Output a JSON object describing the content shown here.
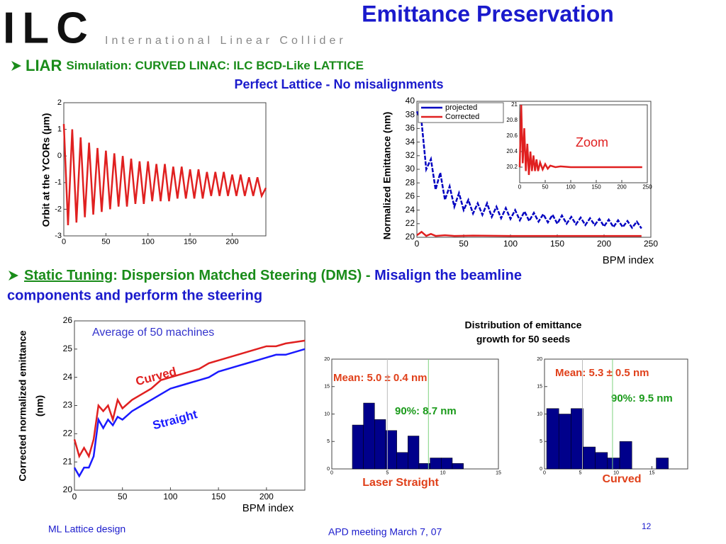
{
  "logo": {
    "mark": "ILC",
    "name": "International Linear Collider"
  },
  "title": "Emittance Preservation",
  "bullet1": {
    "lead": "LIAR",
    "text": "Simulation: CURVED LINAC: ILC  BCD-Like LATTICE",
    "subtitle": "Perfect Lattice - No misalignments"
  },
  "bullet2": {
    "lead": "Static Tuning",
    "text": ": Dispersion Matched Steering (DMS) - ",
    "highlight": [
      "Misalign the beamline",
      "components and perform the steering"
    ]
  },
  "histograms_heading": [
    "Distribution of emittance",
    "growth for 50 seeds"
  ],
  "footer": {
    "left": "ML Lattice design",
    "center": "APD meeting March 7, 07",
    "page": "12"
  },
  "chart_data": [
    {
      "type": "line",
      "ylabel": "Orbit at the YCORs (μm)",
      "x": [
        0,
        5,
        10,
        15,
        20,
        25,
        30,
        35,
        40,
        45,
        50,
        55,
        60,
        65,
        70,
        75,
        80,
        85,
        90,
        95,
        100,
        105,
        110,
        115,
        120,
        125,
        130,
        135,
        140,
        145,
        150,
        155,
        160,
        165,
        170,
        175,
        180,
        185,
        190,
        195,
        200,
        205,
        210,
        215,
        220,
        225,
        230,
        235,
        240
      ],
      "series": [
        {
          "color": "#e02020",
          "values": [
            1.2,
            -2.6,
            1.0,
            -2.5,
            0.7,
            -2.3,
            0.5,
            -2.2,
            0.3,
            -2.1,
            0.2,
            -2.0,
            0.1,
            -1.9,
            0.0,
            -1.9,
            -0.1,
            -1.8,
            -0.2,
            -1.8,
            -0.2,
            -1.7,
            -0.3,
            -1.7,
            -0.3,
            -1.7,
            -0.4,
            -1.6,
            -0.4,
            -1.6,
            -0.5,
            -1.6,
            -0.5,
            -1.6,
            -0.6,
            -1.5,
            -0.6,
            -1.5,
            -0.6,
            -1.5,
            -0.7,
            -1.5,
            -0.7,
            -1.5,
            -0.8,
            -1.5,
            -0.8,
            -1.5,
            -1.2
          ]
        }
      ],
      "xlim": [
        0,
        240
      ],
      "xticks": [
        0,
        50,
        100,
        150,
        200
      ],
      "ylim": [
        -3,
        2
      ],
      "yticks": [
        -3,
        -2,
        -1,
        0,
        1,
        2
      ]
    },
    {
      "type": "line",
      "ylabel": "Normalized Emittance (nm)",
      "xlabel": "BPM index",
      "series": [
        {
          "name": "projected",
          "color": "#0000c0",
          "dash": true,
          "x": [
            0,
            5,
            10,
            15,
            20,
            25,
            30,
            35,
            40,
            45,
            50,
            55,
            60,
            65,
            70,
            75,
            80,
            85,
            90,
            95,
            100,
            105,
            110,
            115,
            120,
            125,
            130,
            135,
            140,
            145,
            150,
            155,
            160,
            165,
            170,
            175,
            180,
            185,
            190,
            195,
            200,
            205,
            210,
            215,
            220,
            225,
            230,
            235,
            240
          ],
          "values": [
            38.5,
            37,
            30,
            31.5,
            27,
            29.5,
            25.5,
            27.5,
            24.5,
            26.5,
            24,
            25.5,
            23.5,
            25,
            23.3,
            25,
            23,
            24.5,
            22.8,
            24.3,
            22.7,
            24,
            22.5,
            23.8,
            22.4,
            23.6,
            22.3,
            23.4,
            22.2,
            23.3,
            22,
            23.2,
            22,
            23,
            21.9,
            22.9,
            21.8,
            22.8,
            21.8,
            22.7,
            21.6,
            22.6,
            21.5,
            22.5,
            21.5,
            22.4,
            21.4,
            22.3,
            21.3
          ]
        },
        {
          "name": "Corrected",
          "color": "#e02020",
          "x": [
            0,
            5,
            10,
            15,
            20,
            30,
            40,
            60,
            100,
            150,
            200,
            240
          ],
          "values": [
            20.3,
            20.8,
            20.2,
            20.5,
            20.2,
            20.3,
            20.2,
            20.25,
            20.2,
            20.2,
            20.2,
            20.2
          ]
        }
      ],
      "xlim": [
        0,
        250
      ],
      "xticks": [
        0,
        50,
        100,
        150,
        200,
        250
      ],
      "ylim": [
        20,
        40
      ],
      "yticks": [
        20,
        22,
        24,
        26,
        28,
        30,
        32,
        34,
        36,
        38,
        40
      ]
    },
    {
      "type": "line",
      "annotations": [
        {
          "text": "Zoom",
          "color": "#e02020"
        }
      ],
      "x": [
        0,
        3,
        6,
        9,
        12,
        15,
        18,
        21,
        24,
        27,
        30,
        33,
        36,
        40,
        45,
        50,
        55,
        60,
        70,
        80,
        100,
        150,
        200,
        240
      ],
      "series": [
        {
          "color": "#e02020",
          "values": [
            20.2,
            21.0,
            20.25,
            20.7,
            20.15,
            20.5,
            20.1,
            20.4,
            20.15,
            20.35,
            20.15,
            20.3,
            20.15,
            20.26,
            20.17,
            20.24,
            20.18,
            20.22,
            20.2,
            20.21,
            20.2,
            20.2,
            20.2,
            20.2
          ]
        }
      ],
      "xlim": [
        0,
        250
      ],
      "xticks": [
        0,
        50,
        100,
        150,
        200,
        250
      ],
      "ylim": [
        20,
        21
      ],
      "yticks": [
        20.2,
        20.4,
        20.6,
        20.8,
        21
      ]
    },
    {
      "type": "line",
      "ylabel": [
        "Corrected normalized emittance",
        "(nm)"
      ],
      "xlabel": "BPM index",
      "annotations": [
        {
          "text": "Average of 50 machines",
          "color": "#3333cc"
        }
      ],
      "x": [
        0,
        5,
        10,
        15,
        20,
        25,
        30,
        35,
        40,
        45,
        50,
        60,
        70,
        80,
        90,
        100,
        110,
        120,
        130,
        140,
        150,
        160,
        170,
        180,
        190,
        200,
        210,
        220,
        240
      ],
      "series": [
        {
          "name": "Curved",
          "color": "#e02020",
          "values": [
            21.8,
            21.2,
            21.5,
            21.2,
            21.8,
            23,
            22.8,
            23,
            22.5,
            23.2,
            22.9,
            23.2,
            23.4,
            23.6,
            23.9,
            24.0,
            24.1,
            24.2,
            24.3,
            24.5,
            24.6,
            24.7,
            24.8,
            24.9,
            25.0,
            25.1,
            25.1,
            25.2,
            25.3
          ]
        },
        {
          "name": "Straight",
          "color": "#1a1aff",
          "values": [
            20.8,
            20.5,
            20.8,
            20.8,
            21.2,
            22.5,
            22.2,
            22.5,
            22.3,
            22.6,
            22.5,
            22.8,
            23.0,
            23.2,
            23.4,
            23.6,
            23.7,
            23.8,
            23.9,
            24.0,
            24.2,
            24.3,
            24.4,
            24.5,
            24.6,
            24.7,
            24.8,
            24.8,
            25.0
          ]
        }
      ],
      "xlim": [
        0,
        240
      ],
      "xticks": [
        0,
        50,
        100,
        150,
        200
      ],
      "ylim": [
        20,
        26
      ],
      "yticks": [
        20,
        21,
        22,
        23,
        24,
        25,
        26
      ]
    },
    {
      "type": "histogram",
      "title": "Laser Straight",
      "color": "#00008b",
      "annotations": [
        {
          "text": "Mean: 5.0 ± 0.4 nm",
          "color": "#e0401a"
        },
        {
          "text": "90%: 8.7 nm",
          "color": "#1a9a1a"
        }
      ],
      "markers": [
        {
          "x": 5.0,
          "color": "#bbbbbb"
        },
        {
          "x": 8.7,
          "color": "#7fd37f"
        }
      ],
      "bins": [
        1.85,
        2.85,
        3.85,
        4.85,
        5.85,
        6.85,
        7.85,
        8.85,
        9.85,
        10.85,
        11.85
      ],
      "values": [
        8,
        12,
        9,
        7,
        3,
        6,
        1,
        2,
        2,
        1
      ],
      "xlim": [
        0,
        15
      ],
      "xticks": [
        0,
        5,
        10,
        15
      ],
      "ylim": [
        0,
        20
      ],
      "yticks": [
        0,
        5,
        10,
        15,
        20
      ]
    },
    {
      "type": "histogram",
      "title": "Curved",
      "color": "#00008b",
      "annotations": [
        {
          "text": "Mean: 5.3 ± 0.5 nm",
          "color": "#e0401a"
        },
        {
          "text": "90%: 9.5 nm",
          "color": "#1a9a1a"
        }
      ],
      "markers": [
        {
          "x": 5.3,
          "color": "#bbbbbb"
        },
        {
          "x": 9.5,
          "color": "#7fd37f"
        }
      ],
      "bins": [
        0.3,
        2.0,
        3.7,
        5.4,
        7.1,
        8.8,
        10.5,
        12.2,
        13.9,
        15.6,
        17.3
      ],
      "values": [
        11,
        10,
        11,
        4,
        3,
        2,
        5,
        0,
        0,
        2
      ],
      "xlim": [
        0,
        20
      ],
      "xticks": [
        0,
        5,
        10,
        15
      ],
      "ylim": [
        0,
        20
      ],
      "yticks": [
        0,
        5,
        10,
        15,
        20
      ]
    }
  ]
}
